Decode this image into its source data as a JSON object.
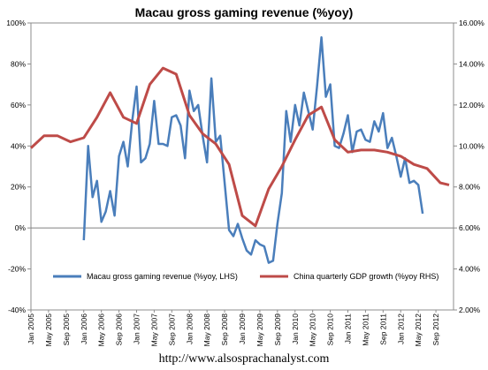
{
  "chart_data": {
    "type": "line",
    "title": "Macau gross gaming revenue (%yoy)",
    "footer": "http://www.alsosprachanalyst.com",
    "x_ticks": [
      "Jan 2005",
      "May 2005",
      "Sep 2005",
      "Jan 2006",
      "May 2006",
      "Sep 2006",
      "Jan 2007",
      "May 2007",
      "Sep 2007",
      "Jan 2008",
      "May 2008",
      "Sep 2008",
      "Jan 2009",
      "May 2009",
      "Sep 2009",
      "Jan 2010",
      "May 2010",
      "Sep 2010",
      "Jan 2011",
      "May 2011",
      "Sep 2011",
      "Jan 2012",
      "May 2012",
      "Sep 2012"
    ],
    "y_left": {
      "min": -40,
      "max": 100,
      "step": 20,
      "tick_labels": [
        "-40%",
        "-20%",
        "0%",
        "20%",
        "40%",
        "60%",
        "80%",
        "100%"
      ]
    },
    "y_right": {
      "min": 2,
      "max": 16,
      "step": 2,
      "tick_labels": [
        "2.00%",
        "4.00%",
        "6.00%",
        "8.00%",
        "10.00%",
        "12.00%",
        "14.00%",
        "16.00%"
      ]
    },
    "legend_position": "bottom-inside",
    "series": [
      {
        "name": "Macau gross gaming revenue (%yoy, LHS)",
        "axis": "left",
        "color": "#4a7ebb",
        "points": [
          [
            "2006-01",
            -6
          ],
          [
            "2006-02",
            40
          ],
          [
            "2006-03",
            15
          ],
          [
            "2006-04",
            23
          ],
          [
            "2006-05",
            3
          ],
          [
            "2006-06",
            8
          ],
          [
            "2006-07",
            18
          ],
          [
            "2006-08",
            6
          ],
          [
            "2006-09",
            35
          ],
          [
            "2006-10",
            42
          ],
          [
            "2006-11",
            30
          ],
          [
            "2006-12",
            52
          ],
          [
            "2007-01",
            69
          ],
          [
            "2007-02",
            32
          ],
          [
            "2007-03",
            34
          ],
          [
            "2007-04",
            41
          ],
          [
            "2007-05",
            62
          ],
          [
            "2007-06",
            41
          ],
          [
            "2007-07",
            41
          ],
          [
            "2007-08",
            40
          ],
          [
            "2007-09",
            54
          ],
          [
            "2007-10",
            55
          ],
          [
            "2007-11",
            50
          ],
          [
            "2007-12",
            34
          ],
          [
            "2008-01",
            67
          ],
          [
            "2008-02",
            57
          ],
          [
            "2008-03",
            60
          ],
          [
            "2008-04",
            45
          ],
          [
            "2008-05",
            32
          ],
          [
            "2008-06",
            73
          ],
          [
            "2008-07",
            42
          ],
          [
            "2008-08",
            45
          ],
          [
            "2008-09",
            22
          ],
          [
            "2008-10",
            -1
          ],
          [
            "2008-11",
            -4
          ],
          [
            "2008-12",
            2
          ],
          [
            "2009-01",
            -5
          ],
          [
            "2009-02",
            -11
          ],
          [
            "2009-03",
            -13
          ],
          [
            "2009-04",
            -6
          ],
          [
            "2009-05",
            -8
          ],
          [
            "2009-06",
            -9
          ],
          [
            "2009-07",
            -17
          ],
          [
            "2009-08",
            -16
          ],
          [
            "2009-09",
            2
          ],
          [
            "2009-10",
            17
          ],
          [
            "2009-11",
            57
          ],
          [
            "2009-12",
            42
          ],
          [
            "2010-01",
            60
          ],
          [
            "2010-02",
            50
          ],
          [
            "2010-03",
            66
          ],
          [
            "2010-04",
            57
          ],
          [
            "2010-05",
            48
          ],
          [
            "2010-06",
            69
          ],
          [
            "2010-07",
            93
          ],
          [
            "2010-08",
            64
          ],
          [
            "2010-09",
            70
          ],
          [
            "2010-10",
            40
          ],
          [
            "2010-11",
            39
          ],
          [
            "2010-12",
            46
          ],
          [
            "2011-01",
            55
          ],
          [
            "2011-02",
            37
          ],
          [
            "2011-03",
            47
          ],
          [
            "2011-04",
            48
          ],
          [
            "2011-05",
            43
          ],
          [
            "2011-06",
            42
          ],
          [
            "2011-07",
            52
          ],
          [
            "2011-08",
            47
          ],
          [
            "2011-09",
            56
          ],
          [
            "2011-10",
            39
          ],
          [
            "2011-11",
            44
          ],
          [
            "2011-12",
            35
          ],
          [
            "2012-01",
            25
          ],
          [
            "2012-02",
            34
          ],
          [
            "2012-03",
            22
          ],
          [
            "2012-04",
            23
          ],
          [
            "2012-05",
            21
          ],
          [
            "2012-06",
            7
          ]
        ]
      },
      {
        "name": "China quarterly GDP growth (%yoy RHS)",
        "axis": "right",
        "color": "#be4b48",
        "points": [
          [
            "2005-01",
            9.9
          ],
          [
            "2005-04",
            10.5
          ],
          [
            "2005-07",
            10.5
          ],
          [
            "2005-10",
            10.2
          ],
          [
            "2006-01",
            10.4
          ],
          [
            "2006-04",
            11.4
          ],
          [
            "2006-07",
            12.6
          ],
          [
            "2006-10",
            11.4
          ],
          [
            "2007-01",
            11.1
          ],
          [
            "2007-04",
            13.0
          ],
          [
            "2007-07",
            13.8
          ],
          [
            "2007-10",
            13.5
          ],
          [
            "2008-01",
            11.5
          ],
          [
            "2008-04",
            10.6
          ],
          [
            "2008-07",
            10.1
          ],
          [
            "2008-10",
            9.1
          ],
          [
            "2009-01",
            6.6
          ],
          [
            "2009-04",
            6.1
          ],
          [
            "2009-07",
            7.9
          ],
          [
            "2009-10",
            9.0
          ],
          [
            "2010-01",
            10.3
          ],
          [
            "2010-04",
            11.5
          ],
          [
            "2010-07",
            11.9
          ],
          [
            "2010-10",
            10.3
          ],
          [
            "2011-01",
            9.7
          ],
          [
            "2011-04",
            9.8
          ],
          [
            "2011-07",
            9.8
          ],
          [
            "2011-10",
            9.7
          ],
          [
            "2012-01",
            9.5
          ],
          [
            "2012-04",
            9.1
          ],
          [
            "2012-07",
            8.9
          ],
          [
            "2012-10",
            8.2
          ],
          [
            "2012-12",
            8.1
          ]
        ]
      }
    ]
  }
}
